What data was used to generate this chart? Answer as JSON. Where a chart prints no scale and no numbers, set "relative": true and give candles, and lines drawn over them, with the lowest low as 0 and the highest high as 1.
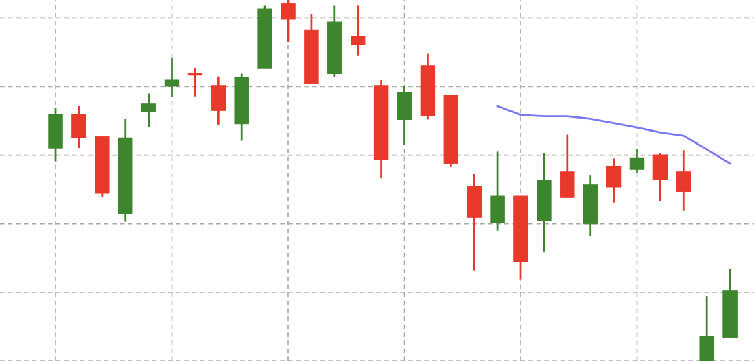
{
  "chart_data": {
    "type": "candlestick",
    "relative": true,
    "grid": true,
    "categories": [
      null,
      null,
      null,
      null,
      null,
      null,
      null,
      null,
      null,
      null,
      null,
      null,
      null,
      null,
      null,
      null,
      null,
      null,
      null,
      null,
      null,
      null,
      null,
      null,
      null,
      null,
      null,
      null,
      null,
      null
    ],
    "ohlc": [
      [
        0.59,
        0.702,
        0.553,
        0.684
      ],
      [
        0.684,
        0.706,
        0.59,
        0.618
      ],
      [
        0.622,
        0.622,
        0.455,
        0.465
      ],
      [
        0.408,
        0.671,
        0.386,
        0.618
      ],
      [
        0.69,
        0.741,
        0.649,
        0.712
      ],
      [
        0.761,
        0.841,
        0.731,
        0.778
      ],
      [
        0.798,
        0.812,
        0.733,
        0.792
      ],
      [
        0.763,
        0.788,
        0.655,
        0.694
      ],
      [
        0.657,
        0.796,
        0.61,
        0.786
      ],
      [
        0.812,
        0.984,
        0.812,
        0.975
      ],
      [
        0.99,
        1.0,
        0.884,
        0.947
      ],
      [
        0.916,
        0.961,
        0.769,
        0.769
      ],
      [
        0.796,
        0.984,
        0.786,
        0.939
      ],
      [
        0.9,
        0.984,
        0.845,
        0.876
      ],
      [
        0.763,
        0.778,
        0.506,
        0.559
      ],
      [
        0.669,
        0.763,
        0.598,
        0.743
      ],
      [
        0.818,
        0.851,
        0.669,
        0.68
      ],
      [
        0.735,
        0.735,
        0.537,
        0.547
      ],
      [
        0.484,
        0.518,
        0.251,
        0.398
      ],
      [
        0.384,
        0.58,
        0.361,
        0.457
      ],
      [
        0.457,
        0.457,
        0.225,
        0.276
      ],
      [
        0.388,
        0.576,
        0.302,
        0.5
      ],
      [
        0.524,
        0.627,
        0.453,
        0.453
      ],
      [
        0.38,
        0.514,
        0.345,
        0.488
      ],
      [
        0.539,
        0.561,
        0.439,
        0.482
      ],
      [
        0.531,
        0.588,
        0.522,
        0.563
      ],
      [
        0.571,
        0.576,
        0.443,
        0.502
      ],
      [
        0.524,
        0.584,
        0.416,
        0.469
      ],
      [
        0.0,
        0.18,
        0.0,
        0.069
      ],
      [
        0.065,
        0.255,
        0.065,
        0.194
      ]
    ],
    "colors": [
      "#3d862e",
      "#e8392b",
      "#e8392b",
      "#3d862e",
      "#3d862e",
      "#3d862e",
      "#e8392b",
      "#e8392b",
      "#3d862e",
      "#3d862e",
      "#e8392b",
      "#e8392b",
      "#3d862e",
      "#e8392b",
      "#e8392b",
      "#3d862e",
      "#e8392b",
      "#e8392b",
      "#e8392b",
      "#3d862e",
      "#e8392b",
      "#3d862e",
      "#e8392b",
      "#3d862e",
      "#e8392b",
      "#3d862e",
      "#e8392b",
      "#e8392b",
      "#3d862e",
      "#3d862e"
    ],
    "series": [
      {
        "type": "line",
        "color": "#7878f0",
        "values": [
          null,
          null,
          null,
          null,
          null,
          null,
          null,
          null,
          null,
          null,
          null,
          null,
          null,
          null,
          null,
          null,
          null,
          null,
          null,
          0.706,
          0.682,
          0.678,
          0.678,
          0.671,
          0.659,
          0.647,
          0.633,
          0.624,
          0.586,
          0.547
        ]
      }
    ]
  }
}
